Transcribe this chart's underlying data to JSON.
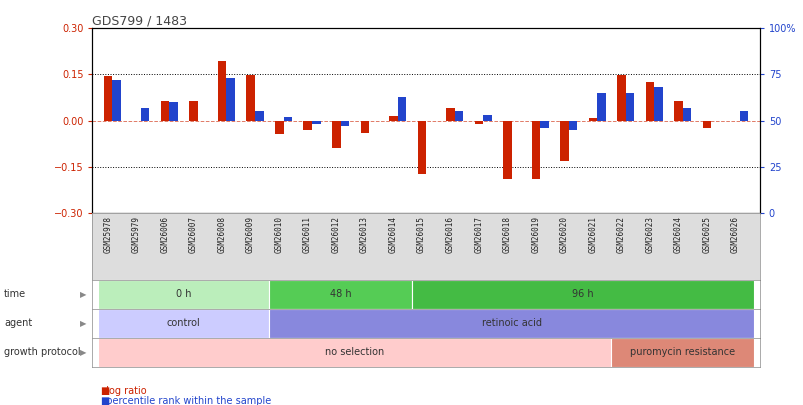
{
  "title": "GDS799 / 1483",
  "samples": [
    "GSM25978",
    "GSM25979",
    "GSM26006",
    "GSM26007",
    "GSM26008",
    "GSM26009",
    "GSM26010",
    "GSM26011",
    "GSM26012",
    "GSM26013",
    "GSM26014",
    "GSM26015",
    "GSM26016",
    "GSM26017",
    "GSM26018",
    "GSM26019",
    "GSM26020",
    "GSM26021",
    "GSM26022",
    "GSM26023",
    "GSM26024",
    "GSM26025",
    "GSM26026"
  ],
  "log_ratio": [
    0.145,
    0.0,
    0.065,
    0.065,
    0.195,
    0.148,
    -0.045,
    -0.03,
    -0.09,
    -0.04,
    0.015,
    -0.175,
    0.04,
    -0.01,
    -0.19,
    -0.19,
    -0.13,
    0.01,
    0.148,
    0.125,
    0.065,
    -0.025,
    0.0
  ],
  "percentile": [
    72,
    57,
    60,
    50,
    73,
    55,
    52,
    48,
    47,
    50,
    63,
    50,
    55,
    53,
    50,
    46,
    45,
    65,
    65,
    68,
    57,
    50,
    55
  ],
  "ylim_left": [
    -0.3,
    0.3
  ],
  "ylim_right": [
    0,
    100
  ],
  "yticks_left": [
    -0.3,
    -0.15,
    0.0,
    0.15,
    0.3
  ],
  "yticks_right": [
    0,
    25,
    50,
    75,
    100
  ],
  "ytick_labels_right": [
    "0",
    "25",
    "50",
    "75",
    "100%"
  ],
  "hlines": [
    0.15,
    -0.15
  ],
  "bar_color_red": "#cc2200",
  "bar_color_blue": "#2244cc",
  "time_groups": [
    {
      "label": "0 h",
      "start": 0,
      "end": 6,
      "color": "#bbeebb"
    },
    {
      "label": "48 h",
      "start": 6,
      "end": 11,
      "color": "#55cc55"
    },
    {
      "label": "96 h",
      "start": 11,
      "end": 23,
      "color": "#44bb44"
    }
  ],
  "agent_groups": [
    {
      "label": "control",
      "start": 0,
      "end": 6,
      "color": "#ccccff"
    },
    {
      "label": "retinoic acid",
      "start": 6,
      "end": 23,
      "color": "#8888dd"
    }
  ],
  "growth_groups": [
    {
      "label": "no selection",
      "start": 0,
      "end": 18,
      "color": "#ffcccc"
    },
    {
      "label": "puromycin resistance",
      "start": 18,
      "end": 23,
      "color": "#dd8877"
    }
  ],
  "row_labels": [
    "time",
    "agent",
    "growth protocol"
  ],
  "legend_red": "log ratio",
  "legend_blue": "percentile rank within the sample",
  "bg_color": "#ffffff",
  "axis_line_color": "#000000",
  "dotted_color": "#000000",
  "label_color_left": "#cc2200",
  "label_color_right": "#2244cc",
  "bar_width": 0.3,
  "zero_line_color": "#cc2200",
  "sample_bg": "#dddddd"
}
